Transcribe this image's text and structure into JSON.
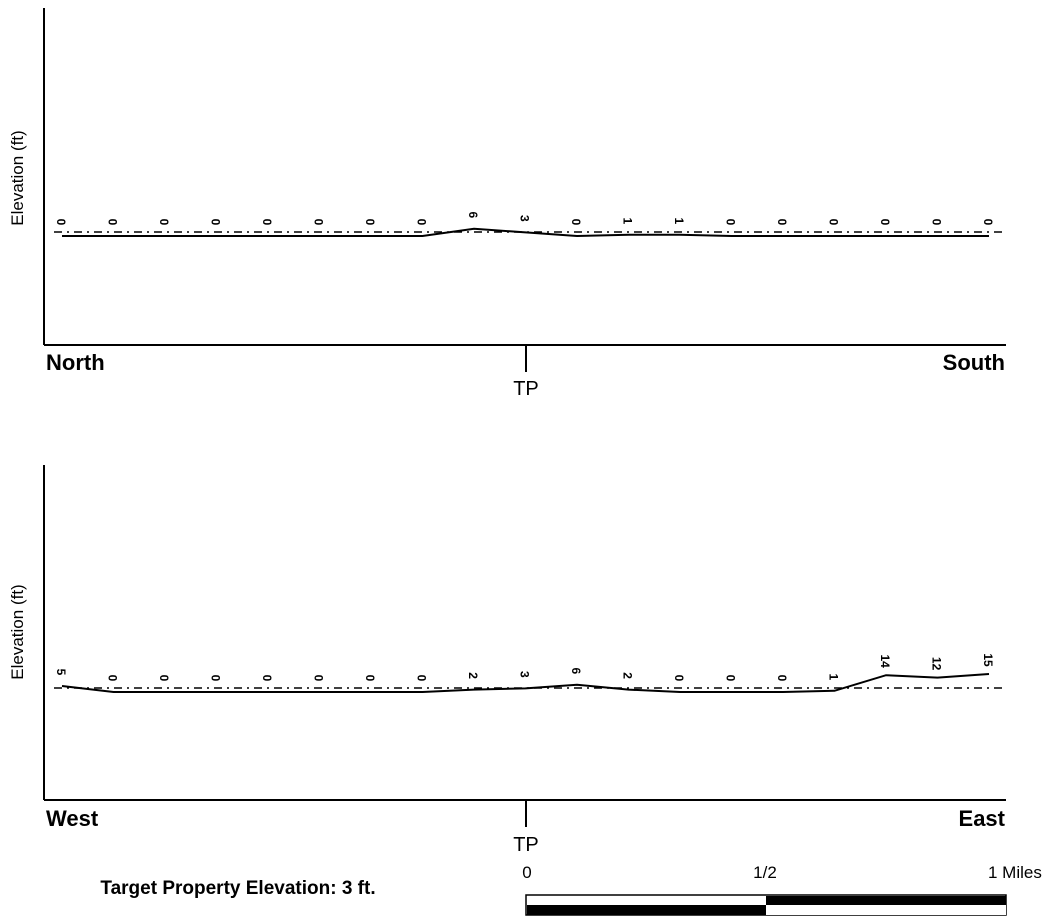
{
  "chart_data": [
    {
      "type": "line",
      "ylabel": "Elevation (ft)",
      "direction_start": "North",
      "direction_end": "South",
      "center_label": "TP",
      "reference_line": "dashed",
      "values": [
        0,
        0,
        0,
        0,
        0,
        0,
        0,
        0,
        6,
        3,
        0,
        1,
        1,
        0,
        0,
        0,
        0,
        0,
        0
      ],
      "value_labels": [
        "0",
        "0",
        "0",
        "0",
        "0",
        "0",
        "0",
        "0",
        "6",
        "3",
        "0",
        "1",
        "1",
        "0",
        "0",
        "0",
        "0",
        "0",
        "0"
      ],
      "ylim": [
        -20,
        20
      ]
    },
    {
      "type": "line",
      "ylabel": "Elevation (ft)",
      "direction_start": "West",
      "direction_end": "East",
      "center_label": "TP",
      "reference_line": "dashed",
      "values": [
        5,
        0,
        0,
        0,
        0,
        0,
        0,
        0,
        2,
        3,
        6,
        2,
        0,
        0,
        0,
        1,
        14,
        12,
        15
      ],
      "value_labels": [
        "5",
        "0",
        "0",
        "0",
        "0",
        "0",
        "0",
        "0",
        "2",
        "3",
        "6",
        "2",
        "0",
        "0",
        "0",
        "1",
        "14",
        "12",
        "15"
      ],
      "ylim": [
        -20,
        20
      ]
    }
  ],
  "footer": {
    "target_elevation": "Target Property Elevation: 3 ft."
  },
  "scale_bar": {
    "label_start": "0",
    "label_mid": "1/2",
    "label_end": "1 Miles"
  }
}
